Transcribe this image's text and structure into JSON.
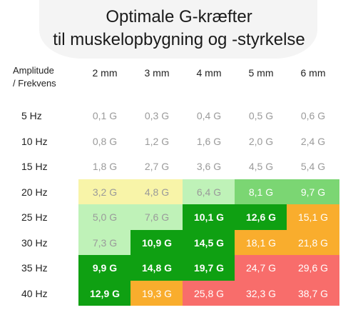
{
  "title": {
    "line1": "Optimale G-kræfter",
    "line2": "til muskelopbygning og -styrkelse"
  },
  "corner": {
    "line1": "Amplitude",
    "line2": "/ Frekvens"
  },
  "columns": [
    "2 mm",
    "3 mm",
    "4 mm",
    "5 mm",
    "6 mm"
  ],
  "rows": [
    "5 Hz",
    "10 Hz",
    "15 Hz",
    "20 Hz",
    "25 Hz",
    "30 Hz",
    "35 Hz",
    "40 Hz"
  ],
  "colors": {
    "none": "#ffffff",
    "pale_yellow": "#f8f4a8",
    "light_green": "#bff2b8",
    "medium_green": "#7bd673",
    "dark_green": "#0fa012",
    "orange": "#f9ad2d",
    "red": "#f86d6b",
    "text_gray": "#9a9a9a",
    "text_white": "#ffffff"
  },
  "cells": [
    [
      {
        "v": "0,1 G",
        "c": "none"
      },
      {
        "v": "0,3 G",
        "c": "none"
      },
      {
        "v": "0,4 G",
        "c": "none"
      },
      {
        "v": "0,5 G",
        "c": "none"
      },
      {
        "v": "0,6 G",
        "c": "none"
      }
    ],
    [
      {
        "v": "0,8 G",
        "c": "none"
      },
      {
        "v": "1,2 G",
        "c": "none"
      },
      {
        "v": "1,6 G",
        "c": "none"
      },
      {
        "v": "2,0 G",
        "c": "none"
      },
      {
        "v": "2,4 G",
        "c": "none"
      }
    ],
    [
      {
        "v": "1,8 G",
        "c": "none"
      },
      {
        "v": "2,7 G",
        "c": "none"
      },
      {
        "v": "3,6 G",
        "c": "none"
      },
      {
        "v": "4,5 G",
        "c": "none"
      },
      {
        "v": "5,4 G",
        "c": "none"
      }
    ],
    [
      {
        "v": "3,2 G",
        "c": "pale_yellow"
      },
      {
        "v": "4,8 G",
        "c": "pale_yellow"
      },
      {
        "v": "6,4 G",
        "c": "light_green"
      },
      {
        "v": "8,1 G",
        "c": "medium_green"
      },
      {
        "v": "9,7 G",
        "c": "medium_green"
      }
    ],
    [
      {
        "v": "5,0 G",
        "c": "light_green"
      },
      {
        "v": "7,6 G",
        "c": "light_green"
      },
      {
        "v": "10,1 G",
        "c": "dark_green"
      },
      {
        "v": "12,6 G",
        "c": "dark_green"
      },
      {
        "v": "15,1 G",
        "c": "orange"
      }
    ],
    [
      {
        "v": "7,3 G",
        "c": "light_green"
      },
      {
        "v": "10,9 G",
        "c": "dark_green"
      },
      {
        "v": "14,5 G",
        "c": "dark_green"
      },
      {
        "v": "18,1 G",
        "c": "orange"
      },
      {
        "v": "21,8 G",
        "c": "orange"
      }
    ],
    [
      {
        "v": "9,9 G",
        "c": "dark_green"
      },
      {
        "v": "14,8 G",
        "c": "dark_green"
      },
      {
        "v": "19,7 G",
        "c": "dark_green"
      },
      {
        "v": "24,7 G",
        "c": "red"
      },
      {
        "v": "29,6 G",
        "c": "red"
      }
    ],
    [
      {
        "v": "12,9 G",
        "c": "dark_green"
      },
      {
        "v": "19,3 G",
        "c": "orange"
      },
      {
        "v": "25,8 G",
        "c": "red"
      },
      {
        "v": "32,3 G",
        "c": "red"
      },
      {
        "v": "38,7 G",
        "c": "red"
      }
    ]
  ]
}
